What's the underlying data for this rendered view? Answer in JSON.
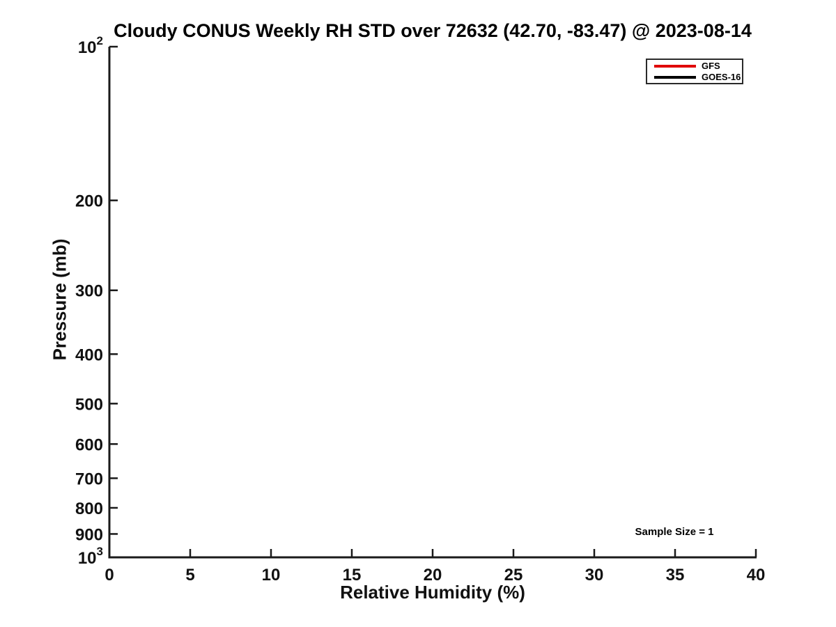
{
  "chart_data": {
    "type": "line",
    "title": "Cloudy CONUS Weekly RH STD over 72632 (42.70, -83.47) @ 2023-08-14",
    "xlabel": "Relative Humidity (%)",
    "ylabel": "Pressure (mb)",
    "annotation": "Sample Size = 1",
    "grid": false,
    "tick_style": "inward",
    "axis_color": "#1a1a1a",
    "x_axis": {
      "min": 0,
      "max": 40,
      "ticks": [
        0,
        5,
        10,
        15,
        20,
        25,
        30,
        35,
        40
      ]
    },
    "y_axis": {
      "scale": "log10",
      "min": 100,
      "max": 1000,
      "direction": "increasing-downward",
      "ticks": [
        {
          "value": 100,
          "base": "10",
          "exp": "2"
        },
        {
          "value": 200,
          "label": "200"
        },
        {
          "value": 300,
          "label": "300"
        },
        {
          "value": 400,
          "label": "400"
        },
        {
          "value": 500,
          "label": "500"
        },
        {
          "value": 600,
          "label": "600"
        },
        {
          "value": 700,
          "label": "700"
        },
        {
          "value": 800,
          "label": "800"
        },
        {
          "value": 900,
          "label": "900"
        },
        {
          "value": 1000,
          "base": "10",
          "exp": "3"
        }
      ]
    },
    "series": [
      {
        "name": "GFS",
        "color": "#e00000",
        "x": [],
        "y": []
      },
      {
        "name": "GOES-16",
        "color": "#000000",
        "x": [],
        "y": []
      }
    ],
    "legend": {
      "position": "upper-right"
    }
  }
}
